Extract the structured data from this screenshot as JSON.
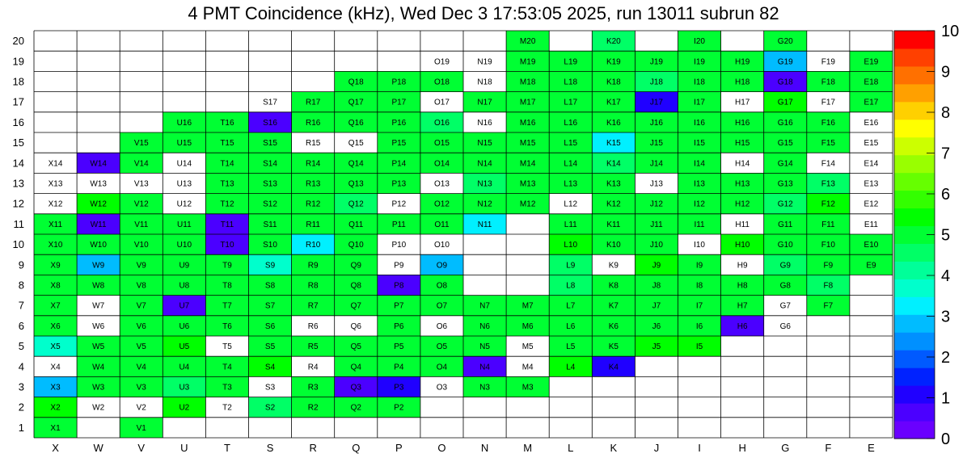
{
  "chart_data": {
    "type": "heatmap",
    "title": "4 PMT Coincidence (kHz), Wed Dec  3 17:53:05 2025, run 13011 subrun 82",
    "xlabel": "",
    "ylabel": "",
    "columns": [
      "X",
      "W",
      "V",
      "U",
      "T",
      "S",
      "R",
      "Q",
      "P",
      "O",
      "N",
      "M",
      "L",
      "K",
      "J",
      "I",
      "H",
      "G",
      "F",
      "E"
    ],
    "rows": [
      1,
      2,
      3,
      4,
      5,
      6,
      7,
      8,
      9,
      10,
      11,
      12,
      13,
      14,
      15,
      16,
      17,
      18,
      19,
      20
    ],
    "colorbar": {
      "min": 0,
      "max": 10,
      "tick_labels": [
        "0",
        "1",
        "2",
        "3",
        "4",
        "5",
        "6",
        "7",
        "8",
        "9",
        "10"
      ],
      "colors": [
        "#6a00ff",
        "#4b00ff",
        "#2000ff",
        "#0022ff",
        "#005aff",
        "#0090ff",
        "#00bcff",
        "#00f0ff",
        "#00ffcc",
        "#00ff99",
        "#00ff66",
        "#00ff33",
        "#00ff00",
        "#33ff00",
        "#66ff00",
        "#99ff00",
        "#ccff00",
        "#ffff00",
        "#ffd000",
        "#ffa000",
        "#ff7000",
        "#ff4000",
        "#ff0000"
      ]
    },
    "row_values": [
      {
        "row": 20,
        "cells": {
          "M": 5.0,
          "K": 4.6,
          "I": 5.0,
          "G": 5.0
        }
      },
      {
        "row": 19,
        "cells": {
          "O": 0,
          "N": 0,
          "M": 5.0,
          "L": 5.2,
          "K": 5.1,
          "J": 5.1,
          "I": 5.0,
          "H": 4.9,
          "G": 3.0,
          "F": 0,
          "E": 5.0
        }
      },
      {
        "row": 18,
        "cells": {
          "Q": 5.2,
          "P": 5.0,
          "O": 4.8,
          "N": 0,
          "M": 4.8,
          "L": 5.0,
          "K": 5.0,
          "J": 4.6,
          "I": 5.0,
          "H": 4.9,
          "G": 0.6,
          "F": 5.2,
          "E": 5.0
        }
      },
      {
        "row": 17,
        "cells": {
          "S": 0,
          "R": 5.0,
          "Q": 5.0,
          "P": 5.0,
          "O": 0,
          "N": 5.0,
          "M": 5.0,
          "L": 5.0,
          "K": 4.9,
          "J": 1.3,
          "I": 5.0,
          "H": 0,
          "G": 5.3,
          "F": 0,
          "E": 5.1
        }
      },
      {
        "row": 16,
        "cells": {
          "U": 5.0,
          "T": 5.0,
          "S": 0.6,
          "R": 5.0,
          "Q": 4.8,
          "P": 4.9,
          "O": 4.6,
          "N": 0,
          "M": 4.8,
          "L": 5.0,
          "K": 4.8,
          "J": 4.9,
          "I": 5.0,
          "H": 5.0,
          "G": 4.9,
          "F": 5.0,
          "E": 0
        }
      },
      {
        "row": 15,
        "cells": {
          "V": 5.0,
          "U": 5.0,
          "T": 5.0,
          "S": 5.0,
          "R": 0,
          "Q": 0,
          "P": 5.0,
          "O": 4.8,
          "N": 5.0,
          "M": 4.9,
          "L": 5.0,
          "K": 3.1,
          "J": 5.0,
          "I": 5.0,
          "H": 5.0,
          "G": 5.0,
          "F": 5.2,
          "E": 0
        }
      },
      {
        "row": 14,
        "cells": {
          "X": 0,
          "W": 0.6,
          "V": 5.0,
          "U": 0,
          "T": 5.0,
          "S": 5.0,
          "R": 5.0,
          "Q": 4.8,
          "P": 5.0,
          "O": 4.9,
          "N": 5.0,
          "M": 5.0,
          "L": 5.0,
          "K": 4.6,
          "J": 5.0,
          "I": 5.0,
          "H": 0,
          "G": 5.0,
          "F": 0,
          "E": 0
        }
      },
      {
        "row": 13,
        "cells": {
          "X": 0,
          "W": 0,
          "V": 0,
          "U": 0,
          "T": 5.0,
          "S": 4.9,
          "R": 4.9,
          "Q": 5.0,
          "P": 5.0,
          "O": 0,
          "N": 4.6,
          "M": 5.0,
          "L": 5.0,
          "K": 5.0,
          "J": 0,
          "I": 5.0,
          "H": 5.0,
          "G": 5.0,
          "F": 4.6,
          "E": 0
        }
      },
      {
        "row": 12,
        "cells": {
          "X": 0,
          "W": 5.3,
          "V": 5.0,
          "U": 0,
          "T": 5.0,
          "S": 5.0,
          "R": 5.0,
          "Q": 4.4,
          "P": 0,
          "O": 4.9,
          "N": 4.9,
          "M": 4.9,
          "L": 0,
          "K": 4.9,
          "J": 5.0,
          "I": 5.0,
          "H": 5.0,
          "G": 4.5,
          "F": 5.3,
          "E": 0
        }
      },
      {
        "row": 11,
        "cells": {
          "X": 5.2,
          "W": 0.6,
          "V": 5.0,
          "U": 5.0,
          "T": 0.6,
          "S": 5.0,
          "R": 4.9,
          "Q": 5.0,
          "P": 5.0,
          "O": 5.0,
          "N": 3.3,
          "L": 5.2,
          "K": 5.0,
          "J": 5.0,
          "I": 5.0,
          "H": 0,
          "G": 5.0,
          "F": 5.1,
          "E": 0
        }
      },
      {
        "row": 10,
        "cells": {
          "X": 5.0,
          "W": 5.0,
          "V": 5.0,
          "U": 5.0,
          "T": 0.6,
          "S": 5.0,
          "R": 3.4,
          "Q": 5.1,
          "P": 0,
          "O": 0,
          "L": 5.3,
          "K": 4.9,
          "J": 5.0,
          "I": 0,
          "H": 5.3,
          "G": 5.0,
          "F": 5.1,
          "E": 5.0
        }
      },
      {
        "row": 9,
        "cells": {
          "X": 5.1,
          "W": 2.8,
          "V": 4.9,
          "U": 5.1,
          "T": 5.0,
          "S": 3.5,
          "R": 5.0,
          "Q": 5.0,
          "P": 0,
          "O": 2.7,
          "L": 4.5,
          "K": 0,
          "J": 5.3,
          "I": 5.2,
          "H": 0,
          "G": 4.5,
          "F": 5.0,
          "E": 4.8
        }
      },
      {
        "row": 8,
        "cells": {
          "X": 5.1,
          "W": 5.0,
          "V": 5.0,
          "U": 5.0,
          "T": 5.0,
          "S": 5.0,
          "R": 5.0,
          "Q": 5.0,
          "P": 0.6,
          "O": 5.0,
          "L": 4.4,
          "K": 5.0,
          "J": 4.9,
          "I": 5.0,
          "H": 5.0,
          "G": 4.9,
          "F": 4.7
        }
      },
      {
        "row": 7,
        "cells": {
          "X": 5.1,
          "W": 0,
          "V": 5.0,
          "U": 0.6,
          "T": 4.9,
          "S": 4.9,
          "R": 5.0,
          "Q": 4.9,
          "P": 5.0,
          "O": 5.0,
          "N": 5.0,
          "M": 5.0,
          "L": 4.9,
          "K": 5.0,
          "J": 5.0,
          "I": 5.0,
          "H": 5.0,
          "G": 0,
          "F": 5.0
        }
      },
      {
        "row": 6,
        "cells": {
          "X": 5.1,
          "W": 0,
          "V": 5.0,
          "U": 5.0,
          "T": 5.0,
          "S": 5.0,
          "R": 0,
          "Q": 0,
          "P": 5.0,
          "O": 0,
          "N": 4.9,
          "M": 5.0,
          "L": 5.0,
          "K": 5.0,
          "J": 5.0,
          "I": 4.8,
          "H": 0.6,
          "G": 0
        }
      },
      {
        "row": 5,
        "cells": {
          "X": 3.6,
          "W": 5.0,
          "V": 5.0,
          "U": 5.3,
          "T": 0,
          "S": 4.9,
          "R": 5.0,
          "Q": 5.0,
          "P": 5.0,
          "O": 5.0,
          "N": 5.0,
          "M": 0,
          "L": 5.0,
          "K": 5.0,
          "J": 5.3,
          "I": 5.3
        }
      },
      {
        "row": 4,
        "cells": {
          "X": 0,
          "W": 5.0,
          "V": 5.0,
          "U": 5.0,
          "T": 5.0,
          "S": 5.3,
          "R": 0,
          "Q": 5.0,
          "P": 5.0,
          "O": 5.0,
          "N": 0.6,
          "M": 0,
          "L": 5.3,
          "K": 1.2
        }
      },
      {
        "row": 3,
        "cells": {
          "X": 2.9,
          "W": 5.0,
          "V": 4.9,
          "U": 4.4,
          "T": 4.9,
          "S": 0,
          "R": 5.0,
          "Q": 0.6,
          "P": 1.2,
          "O": 0,
          "N": 4.9,
          "M": 5.0
        }
      },
      {
        "row": 2,
        "cells": {
          "X": 5.3,
          "W": 0,
          "V": 0,
          "U": 5.3,
          "T": 0,
          "S": 4.6,
          "R": 5.0,
          "Q": 5.0,
          "P": 5.0
        }
      },
      {
        "row": 1,
        "cells": {
          "X": 5.1,
          "V": 5.0
        }
      }
    ]
  }
}
